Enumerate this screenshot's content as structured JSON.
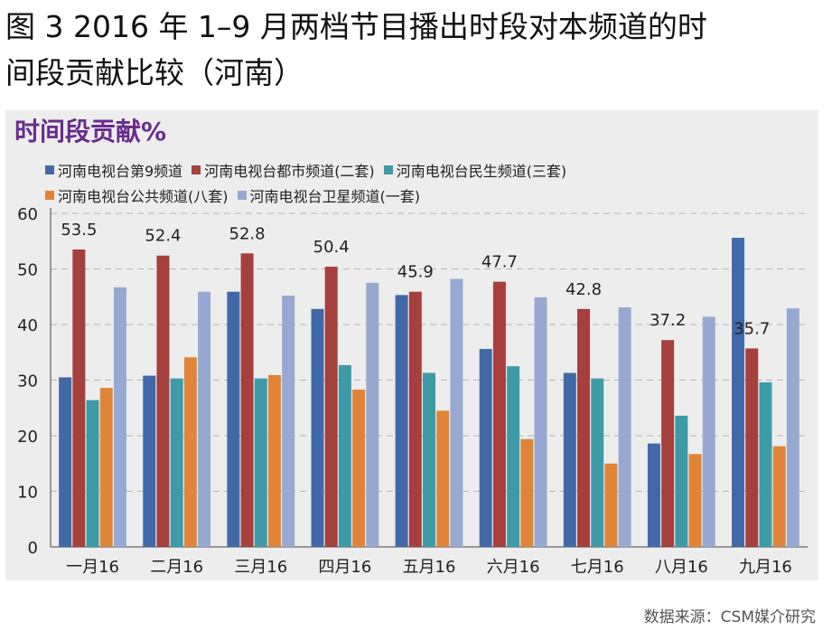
{
  "figure": {
    "title_line1": "图 3 2016 年 1–9 月两档节目播出时段对本频道的时",
    "title_line2": "间段贡献比较（河南）",
    "source": "数据来源：CSM媒介研究"
  },
  "chart_data": {
    "type": "bar",
    "title": "时间段贡献%",
    "categories": [
      "一月16",
      "二月16",
      "三月16",
      "四月16",
      "五月16",
      "六月16",
      "七月16",
      "八月16",
      "九月16"
    ],
    "ylim": [
      0,
      60
    ],
    "yticks": [
      0,
      10,
      20,
      30,
      40,
      50,
      60
    ],
    "grid": true,
    "legend_position": "top",
    "series": [
      {
        "name": "河南电视台第9频道",
        "color": "#4169a8",
        "values": [
          30.5,
          30.8,
          45.9,
          42.8,
          45.3,
          35.6,
          31.3,
          18.6,
          55.6
        ]
      },
      {
        "name": "河南电视台都市频道(二套)",
        "color": "#a5403c",
        "values": [
          53.5,
          52.4,
          52.8,
          50.4,
          45.9,
          47.7,
          42.8,
          37.2,
          35.7
        ],
        "data_labels": true
      },
      {
        "name": "河南电视台民生频道(三套)",
        "color": "#3d9ba8",
        "values": [
          26.4,
          30.3,
          30.3,
          32.7,
          31.3,
          32.5,
          30.3,
          23.6,
          29.6
        ]
      },
      {
        "name": "河南电视台公共频道(八套)",
        "color": "#e0843a",
        "values": [
          28.6,
          34.1,
          30.9,
          28.3,
          24.5,
          19.4,
          15.0,
          16.7,
          18.1
        ]
      },
      {
        "name": "河南电视台卫星频道(一套)",
        "color": "#97a9d2",
        "values": [
          46.7,
          45.9,
          45.2,
          47.5,
          48.2,
          44.9,
          43.1,
          41.4,
          42.9
        ]
      }
    ]
  }
}
